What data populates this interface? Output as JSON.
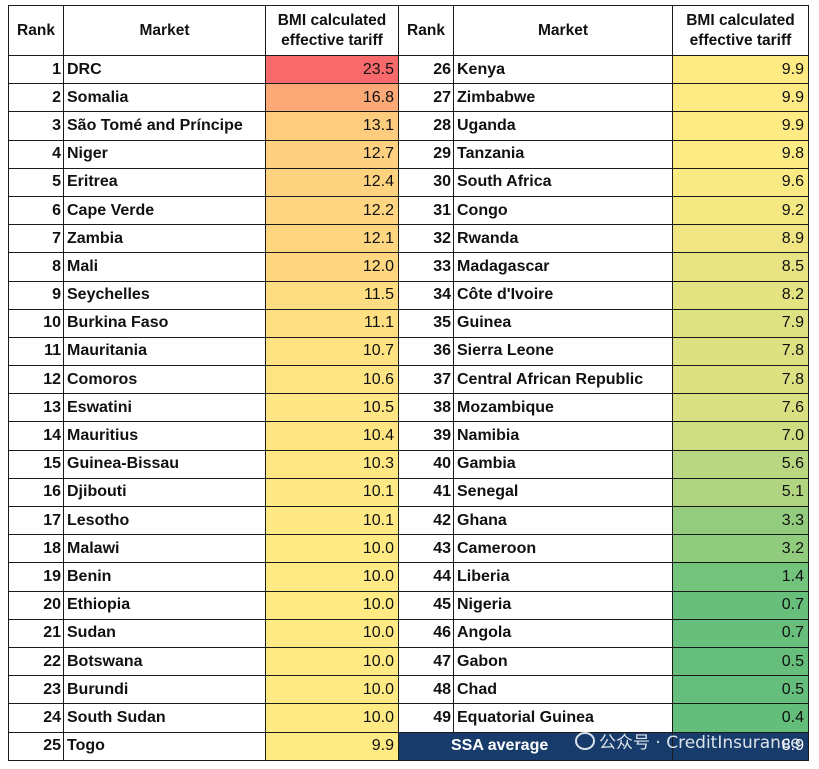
{
  "chart_data": {
    "type": "table",
    "headers": {
      "rank": "Rank",
      "market": "Market",
      "tariff_line1": "BMI calculated",
      "tariff_line2": "effective tariff"
    },
    "left": [
      {
        "rank": "1",
        "market": "DRC",
        "tariff": 23.5
      },
      {
        "rank": "2",
        "market": "Somalia",
        "tariff": 16.8
      },
      {
        "rank": "3",
        "market": "São Tomé and Príncipe",
        "tariff": 13.1
      },
      {
        "rank": "4",
        "market": "Niger",
        "tariff": 12.7
      },
      {
        "rank": "5",
        "market": "Eritrea",
        "tariff": 12.4
      },
      {
        "rank": "6",
        "market": "Cape Verde",
        "tariff": 12.2
      },
      {
        "rank": "7",
        "market": "Zambia",
        "tariff": 12.1
      },
      {
        "rank": "8",
        "market": "Mali",
        "tariff": 12.0
      },
      {
        "rank": "9",
        "market": "Seychelles",
        "tariff": 11.5
      },
      {
        "rank": "10",
        "market": "Burkina Faso",
        "tariff": 11.1
      },
      {
        "rank": "11",
        "market": "Mauritania",
        "tariff": 10.7
      },
      {
        "rank": "12",
        "market": "Comoros",
        "tariff": 10.6
      },
      {
        "rank": "13",
        "market": "Eswatini",
        "tariff": 10.5
      },
      {
        "rank": "14",
        "market": "Mauritius",
        "tariff": 10.4
      },
      {
        "rank": "15",
        "market": "Guinea-Bissau",
        "tariff": 10.3
      },
      {
        "rank": "16",
        "market": "Djibouti",
        "tariff": 10.1
      },
      {
        "rank": "17",
        "market": "Lesotho",
        "tariff": 10.1
      },
      {
        "rank": "18",
        "market": "Malawi",
        "tariff": 10.0
      },
      {
        "rank": "19",
        "market": "Benin",
        "tariff": 10.0
      },
      {
        "rank": "20",
        "market": "Ethiopia",
        "tariff": 10.0
      },
      {
        "rank": "21",
        "market": "Sudan",
        "tariff": 10.0
      },
      {
        "rank": "22",
        "market": "Botswana",
        "tariff": 10.0
      },
      {
        "rank": "23",
        "market": "Burundi",
        "tariff": 10.0
      },
      {
        "rank": "24",
        "market": "South Sudan",
        "tariff": 10.0
      },
      {
        "rank": "25",
        "market": "Togo",
        "tariff": 9.9
      }
    ],
    "right": [
      {
        "rank": "26",
        "market": "Kenya",
        "tariff": 9.9
      },
      {
        "rank": "27",
        "market": "Zimbabwe",
        "tariff": 9.9
      },
      {
        "rank": "28",
        "market": "Uganda",
        "tariff": 9.9
      },
      {
        "rank": "29",
        "market": "Tanzania",
        "tariff": 9.8
      },
      {
        "rank": "30",
        "market": "South Africa",
        "tariff": 9.6
      },
      {
        "rank": "31",
        "market": "Congo",
        "tariff": 9.2
      },
      {
        "rank": "32",
        "market": "Rwanda",
        "tariff": 8.9
      },
      {
        "rank": "33",
        "market": "Madagascar",
        "tariff": 8.5
      },
      {
        "rank": "34",
        "market": "Côte d'Ivoire",
        "tariff": 8.2
      },
      {
        "rank": "35",
        "market": "Guinea",
        "tariff": 7.9
      },
      {
        "rank": "36",
        "market": "Sierra Leone",
        "tariff": 7.8
      },
      {
        "rank": "37",
        "market": "Central African Republic",
        "tariff": 7.8
      },
      {
        "rank": "38",
        "market": "Mozambique",
        "tariff": 7.6
      },
      {
        "rank": "39",
        "market": "Namibia",
        "tariff": 7.0
      },
      {
        "rank": "40",
        "market": "Gambia",
        "tariff": 5.6
      },
      {
        "rank": "41",
        "market": "Senegal",
        "tariff": 5.1
      },
      {
        "rank": "42",
        "market": "Ghana",
        "tariff": 3.3
      },
      {
        "rank": "43",
        "market": "Cameroon",
        "tariff": 3.2
      },
      {
        "rank": "44",
        "market": "Liberia",
        "tariff": 1.4
      },
      {
        "rank": "45",
        "market": "Nigeria",
        "tariff": 0.7
      },
      {
        "rank": "46",
        "market": "Angola",
        "tariff": 0.7
      },
      {
        "rank": "47",
        "market": "Gabon",
        "tariff": 0.5
      },
      {
        "rank": "48",
        "market": "Chad",
        "tariff": 0.5
      },
      {
        "rank": "49",
        "market": "Equatorial Guinea",
        "tariff": 0.4
      }
    ],
    "average": {
      "label": "SSA average",
      "tariff": 8.9
    },
    "color_scale": {
      "low": "#63be7b",
      "mid": "#ffeb84",
      "high": "#f8696b"
    },
    "avg_color": "#173c6b"
  },
  "watermark": {
    "icon": "wechat-icon",
    "text": "公众号 · CreditInsurance"
  }
}
